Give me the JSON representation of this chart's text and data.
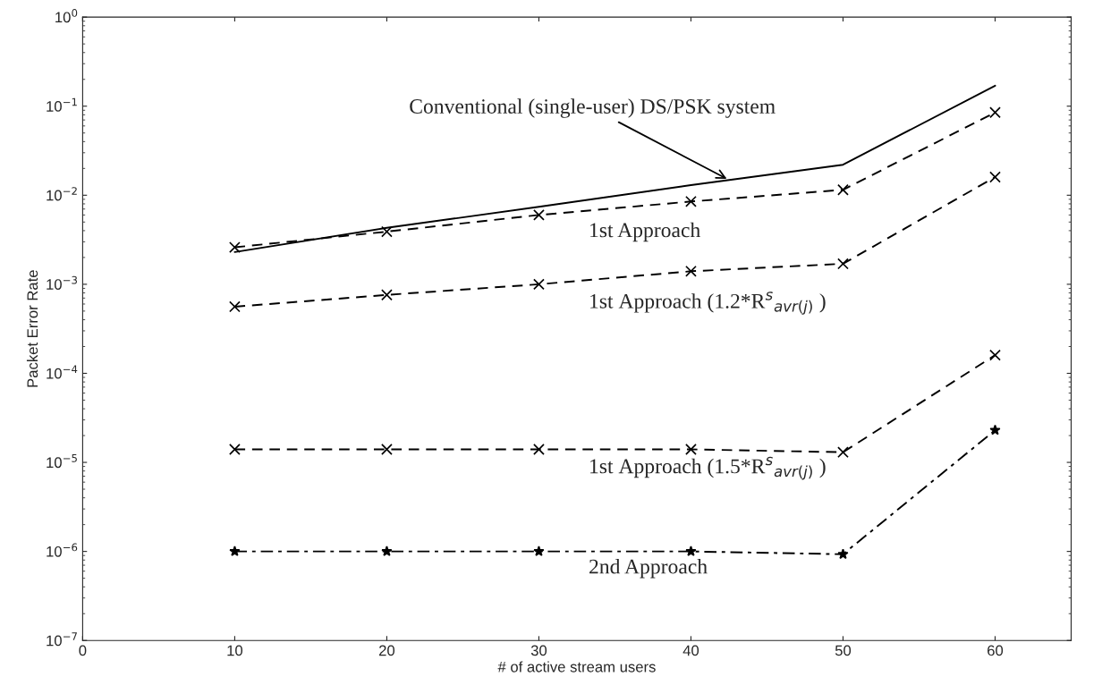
{
  "chart_data": {
    "type": "line",
    "xlabel": "# of active stream users",
    "ylabel": "Packet Error Rate",
    "x": [
      10,
      20,
      30,
      40,
      50,
      60
    ],
    "series": [
      {
        "name": "Conventional (single-user) DS/PSK system",
        "color": "#000000",
        "line_style": "solid",
        "marker": "none",
        "values": [
          0.0023,
          0.0043,
          0.0074,
          0.013,
          0.022,
          0.17
        ]
      },
      {
        "name": "1st Approach",
        "color": "#000000",
        "line_style": "dashed",
        "marker": "cross",
        "values": [
          0.0026,
          0.0039,
          0.006,
          0.0085,
          0.0115,
          0.085
        ]
      },
      {
        "name": "1st Approach (1.2*R$^{s}$$_{avr(j)}$ )",
        "color": "#000000",
        "line_style": "dashed",
        "marker": "cross",
        "values": [
          0.00056,
          0.00076,
          0.001,
          0.0014,
          0.0017,
          0.016
        ]
      },
      {
        "name": "1st Approach (1.5*R$^{s}$$_{avr(j)}$ )",
        "color": "#000000",
        "line_style": "dashed",
        "marker": "cross",
        "values": [
          1.4e-05,
          1.4e-05,
          1.4e-05,
          1.4e-05,
          1.3e-05,
          0.00016
        ]
      },
      {
        "name": "2nd Approach",
        "color": "#000000",
        "line_style": "dashdot",
        "marker": "star",
        "values": [
          1e-06,
          1e-06,
          1e-06,
          1e-06,
          9.3e-07,
          2.3e-05
        ]
      }
    ],
    "log": "y",
    "xlim": [
      0,
      65
    ],
    "xticks": [
      0,
      10,
      20,
      30,
      40,
      50,
      60
    ],
    "ylim": [
      1e-07,
      1
    ],
    "yticks": [
      {
        "value": 1e-07,
        "label": "10$^{−7}$"
      },
      {
        "value": 1e-06,
        "label": "10$^{−6}$"
      },
      {
        "value": 1e-05,
        "label": "10$^{−5}$"
      },
      {
        "value": 0.0001,
        "label": "10$^{−4}$"
      },
      {
        "value": 0.001,
        "label": "10$^{−3}$"
      },
      {
        "value": 0.01,
        "label": "10$^{−2}$"
      },
      {
        "value": 0.1,
        "label": "10$^{−1}$"
      },
      {
        "value": 1,
        "label": "10$^{0}$"
      }
    ],
    "grid": false,
    "legend": false
  }
}
